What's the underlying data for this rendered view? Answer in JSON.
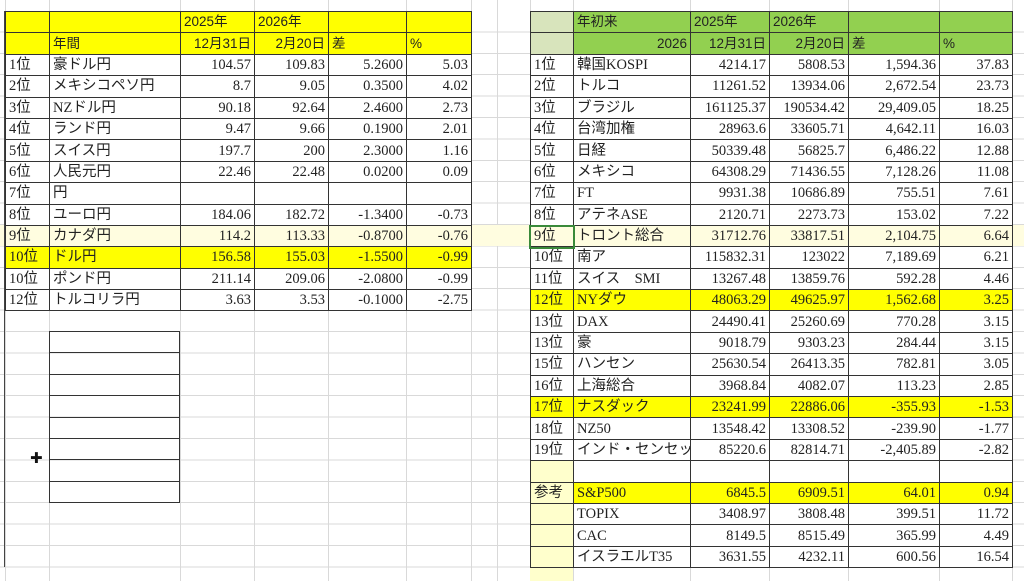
{
  "colors": {
    "yellow": "#ffff00",
    "green": "#92d050",
    "light_green": "#d8e4bc",
    "pale_yellow": "#ffffcc",
    "row_highlight": "#fffde0",
    "selection": "#3a8a3a"
  },
  "left": {
    "header1": [
      "",
      "",
      "2025年",
      "2026年",
      "",
      ""
    ],
    "header2": [
      "",
      "年間",
      "12月31日",
      "2月20日",
      "差",
      "%"
    ],
    "rows": [
      {
        "rank": "1位",
        "name": "豪ドル円",
        "v2025": "104.57",
        "v2026": "109.83",
        "diff": "5.2600",
        "pct": "5.03"
      },
      {
        "rank": "2位",
        "name": "メキシコペソ円",
        "v2025": "8.7",
        "v2026": "9.05",
        "diff": "0.3500",
        "pct": "4.02"
      },
      {
        "rank": "3位",
        "name": "NZドル円",
        "v2025": "90.18",
        "v2026": "92.64",
        "diff": "2.4600",
        "pct": "2.73"
      },
      {
        "rank": "4位",
        "name": "ランド円",
        "v2025": "9.47",
        "v2026": "9.66",
        "diff": "0.1900",
        "pct": "2.01"
      },
      {
        "rank": "5位",
        "name": "スイス円",
        "v2025": "197.7",
        "v2026": "200",
        "diff": "2.3000",
        "pct": "1.16"
      },
      {
        "rank": "6位",
        "name": "人民元円",
        "v2025": "22.46",
        "v2026": "22.48",
        "diff": "0.0200",
        "pct": "0.09"
      },
      {
        "rank": "7位",
        "name": "円",
        "v2025": "",
        "v2026": "",
        "diff": "",
        "pct": ""
      },
      {
        "rank": "8位",
        "name": "ユーロ円",
        "v2025": "184.06",
        "v2026": "182.72",
        "diff": "-1.3400",
        "pct": "-0.73"
      },
      {
        "rank": "9位",
        "name": "カナダ円",
        "v2025": "114.2",
        "v2026": "113.33",
        "diff": "-0.8700",
        "pct": "-0.76",
        "row_highlight": true
      },
      {
        "rank": "10位",
        "name": "ドル円",
        "v2025": "156.58",
        "v2026": "155.03",
        "diff": "-1.5500",
        "pct": "-0.99",
        "highlight": "yellow"
      },
      {
        "rank": "10位",
        "name": "ポンド円",
        "v2025": "211.14",
        "v2026": "209.06",
        "diff": "-2.0800",
        "pct": "-0.99"
      },
      {
        "rank": "12位",
        "name": "トルコリラ円",
        "v2025": "3.63",
        "v2026": "3.53",
        "diff": "-0.1000",
        "pct": "-2.75"
      }
    ]
  },
  "right": {
    "header1": [
      "",
      "年初来",
      "2025年",
      "2026年",
      "",
      ""
    ],
    "header2": [
      "",
      "2026",
      "12月31日",
      "2月20日",
      "差",
      "%"
    ],
    "rows": [
      {
        "rank": "1位",
        "name": "韓国KOSPI",
        "v2025": "4214.17",
        "v2026": "5808.53",
        "diff": "1,594.36",
        "pct": "37.83"
      },
      {
        "rank": "2位",
        "name": "トルコ",
        "v2025": "11261.52",
        "v2026": "13934.06",
        "diff": "2,672.54",
        "pct": "23.73"
      },
      {
        "rank": "3位",
        "name": "ブラジル",
        "v2025": "161125.37",
        "v2026": "190534.42",
        "diff": "29,409.05",
        "pct": "18.25"
      },
      {
        "rank": "4位",
        "name": "台湾加権",
        "v2025": "28963.6",
        "v2026": "33605.71",
        "diff": "4,642.11",
        "pct": "16.03"
      },
      {
        "rank": "5位",
        "name": "日経",
        "v2025": "50339.48",
        "v2026": "56825.7",
        "diff": "6,486.22",
        "pct": "12.88"
      },
      {
        "rank": "6位",
        "name": "メキシコ",
        "v2025": "64308.29",
        "v2026": "71436.55",
        "diff": "7,128.26",
        "pct": "11.08"
      },
      {
        "rank": "7位",
        "name": "FT",
        "v2025": "9931.38",
        "v2026": "10686.89",
        "diff": "755.51",
        "pct": "7.61"
      },
      {
        "rank": "8位",
        "name": "アテネASE",
        "v2025": "2120.71",
        "v2026": "2273.73",
        "diff": "153.02",
        "pct": "7.22"
      },
      {
        "rank": "9位",
        "name": "トロント総合",
        "v2025": "31712.76",
        "v2026": "33817.51",
        "diff": "2,104.75",
        "pct": "6.64",
        "row_highlight": true,
        "selected": true
      },
      {
        "rank": "10位",
        "name": "南ア",
        "v2025": "115832.31",
        "v2026": "123022",
        "diff": "7,189.69",
        "pct": "6.21"
      },
      {
        "rank": "11位",
        "name": "スイス　SMI",
        "v2025": "13267.48",
        "v2026": "13859.76",
        "diff": "592.28",
        "pct": "4.46"
      },
      {
        "rank": "12位",
        "name": "NYダウ",
        "v2025": "48063.29",
        "v2026": "49625.97",
        "diff": "1,562.68",
        "pct": "3.25",
        "highlight": "yellow"
      },
      {
        "rank": "13位",
        "name": "DAX",
        "v2025": "24490.41",
        "v2026": "25260.69",
        "diff": "770.28",
        "pct": "3.15"
      },
      {
        "rank": "13位",
        "name": "豪",
        "v2025": "9018.79",
        "v2026": "9303.23",
        "diff": "284.44",
        "pct": "3.15"
      },
      {
        "rank": "15位",
        "name": "ハンセン",
        "v2025": "25630.54",
        "v2026": "26413.35",
        "diff": "782.81",
        "pct": "3.05"
      },
      {
        "rank": "16位",
        "name": "上海総合",
        "v2025": "3968.84",
        "v2026": "4082.07",
        "diff": "113.23",
        "pct": "2.85"
      },
      {
        "rank": "17位",
        "name": "ナスダック",
        "v2025": "23241.99",
        "v2026": "22886.06",
        "diff": "-355.93",
        "pct": "-1.53",
        "highlight": "yellow"
      },
      {
        "rank": "18位",
        "name": "NZ50",
        "v2025": "13548.42",
        "v2026": "13308.52",
        "diff": "-239.90",
        "pct": "-1.77"
      },
      {
        "rank": "19位",
        "name": "インド・センセックス",
        "v2025": "85220.6",
        "v2026": "82814.71",
        "diff": "-2,405.89",
        "pct": "-2.82"
      },
      {
        "rank": "",
        "name": "",
        "v2025": "",
        "v2026": "",
        "diff": "",
        "pct": "",
        "rank_bg": "pale_yellow"
      },
      {
        "rank": "参考",
        "name": "S&P500",
        "v2025": "6845.5",
        "v2026": "6909.51",
        "diff": "64.01",
        "pct": "0.94",
        "highlight": "yellow"
      },
      {
        "rank": "",
        "name": "TOPIX",
        "v2025": "3408.97",
        "v2026": "3808.48",
        "diff": "399.51",
        "pct": "11.72",
        "rank_bg": "pale_yellow"
      },
      {
        "rank": "",
        "name": "CAC",
        "v2025": "8149.5",
        "v2026": "8515.49",
        "diff": "365.99",
        "pct": "4.49",
        "rank_bg": "pale_yellow"
      },
      {
        "rank": "",
        "name": "イスラエルT35",
        "v2025": "3631.55",
        "v2026": "4232.11",
        "diff": "600.56",
        "pct": "16.54",
        "rank_bg": "pale_yellow"
      }
    ]
  },
  "cursor_icon": "cell-select-cross-icon"
}
